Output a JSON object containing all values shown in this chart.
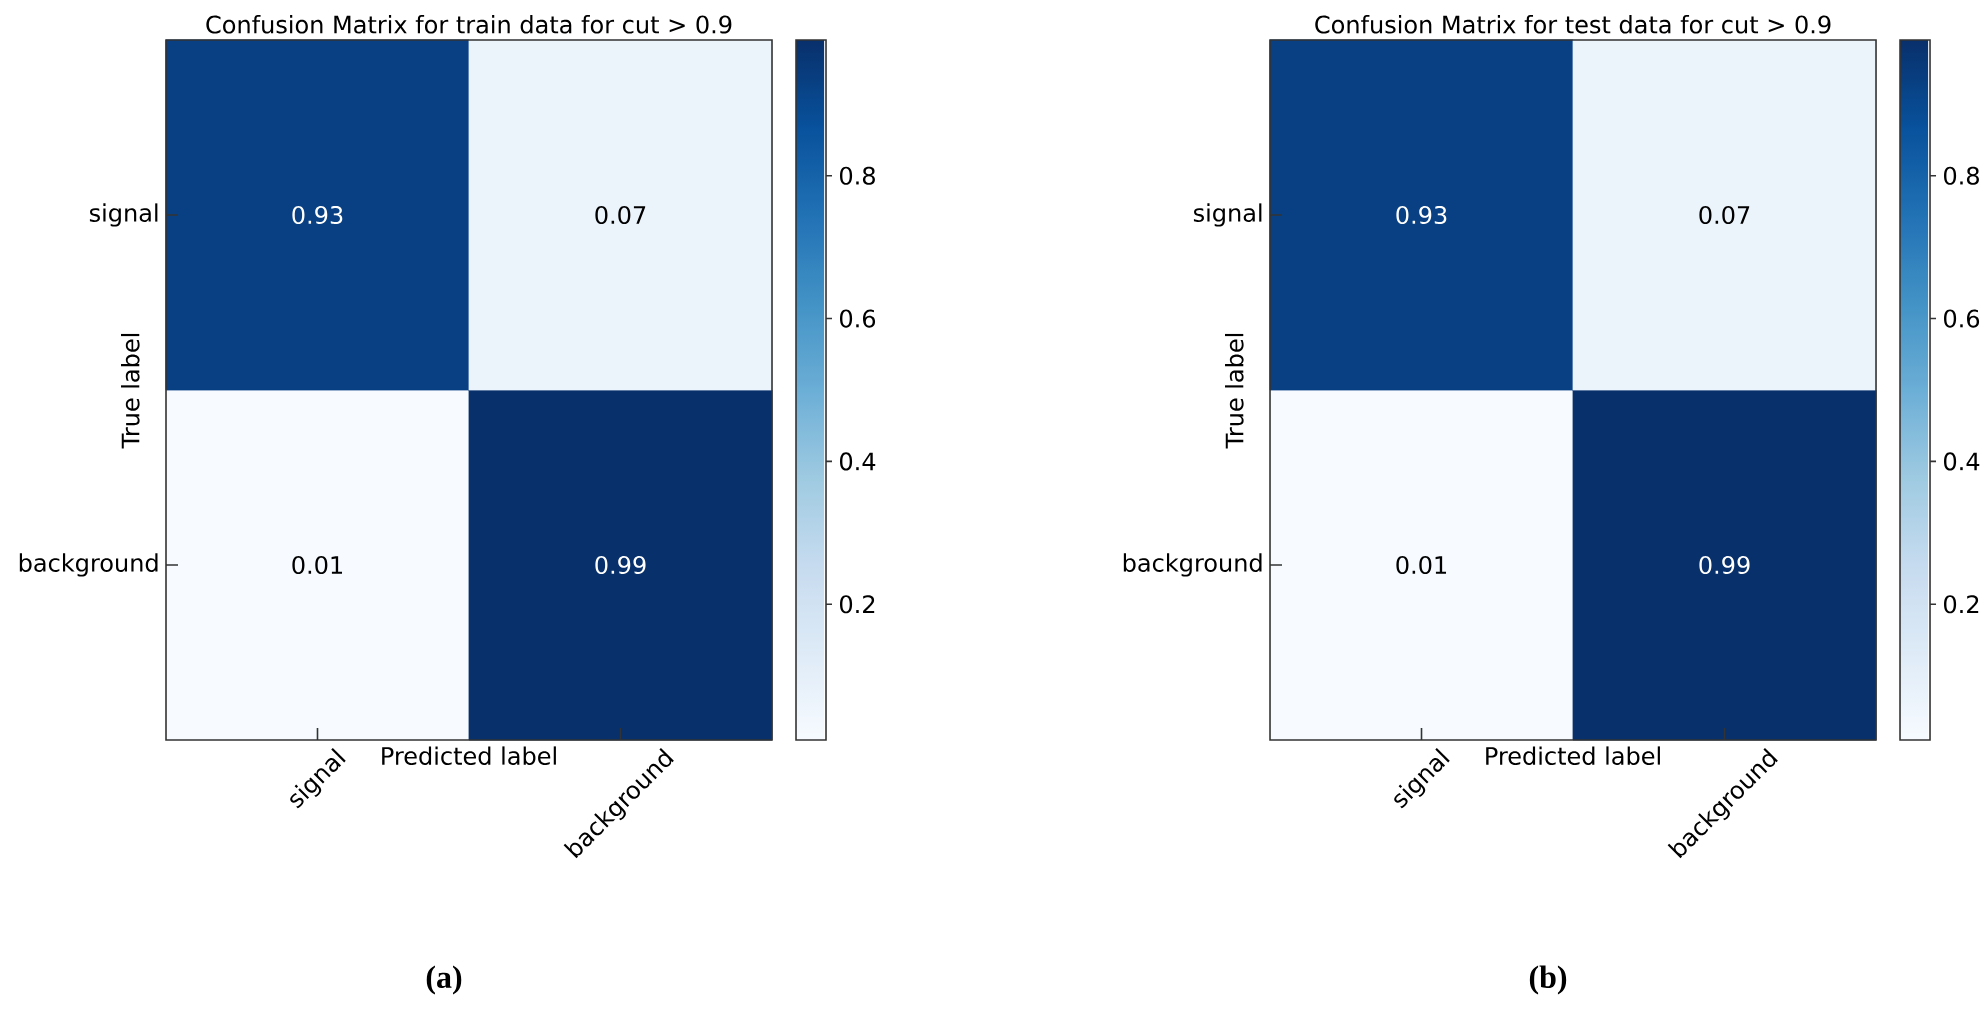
{
  "chart_data": [
    {
      "type": "heatmap",
      "title": "Confusion Matrix for train data for cut > 0.9",
      "xlabel": "Predicted label",
      "ylabel": "True label",
      "categories": [
        "signal",
        "background"
      ],
      "y_categories": [
        "signal",
        "background"
      ],
      "cells": [
        [
          0.93,
          0.07
        ],
        [
          0.01,
          0.99
        ]
      ],
      "data_labels": true,
      "clim": [
        0.01,
        0.99
      ],
      "cticks": [
        0.2,
        0.4,
        0.6,
        0.8
      ],
      "annotations": [
        "(a)"
      ]
    },
    {
      "type": "heatmap",
      "title": "Confusion Matrix for test data for cut > 0.9",
      "xlabel": "Predicted label",
      "ylabel": "True label",
      "categories": [
        "signal",
        "background"
      ],
      "y_categories": [
        "signal",
        "background"
      ],
      "cells": [
        [
          0.93,
          0.07
        ],
        [
          0.01,
          0.99
        ]
      ],
      "data_labels": true,
      "clim": [
        0.01,
        0.99
      ],
      "cticks": [
        0.2,
        0.4,
        0.6,
        0.8
      ],
      "annotations": [
        "(b)"
      ]
    }
  ]
}
